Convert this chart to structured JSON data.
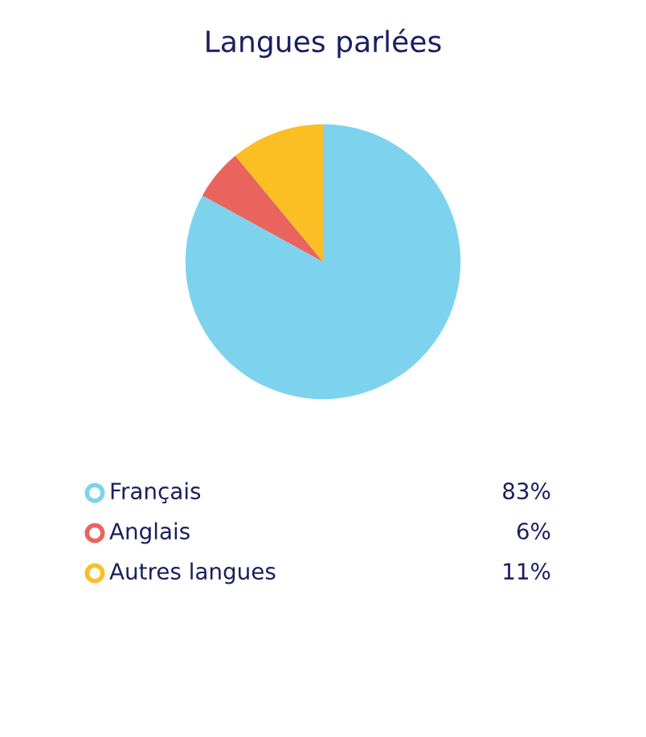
{
  "chart_data": {
    "type": "pie",
    "title": "Langues parlées",
    "categories": [
      "Français",
      "Anglais",
      "Autres langues"
    ],
    "values": [
      83,
      6,
      11
    ],
    "colors": [
      "#7dd3ee",
      "#e8645c",
      "#fbbf24"
    ],
    "value_labels": [
      "83%",
      "6%",
      "11%"
    ],
    "legend": "bottom"
  }
}
